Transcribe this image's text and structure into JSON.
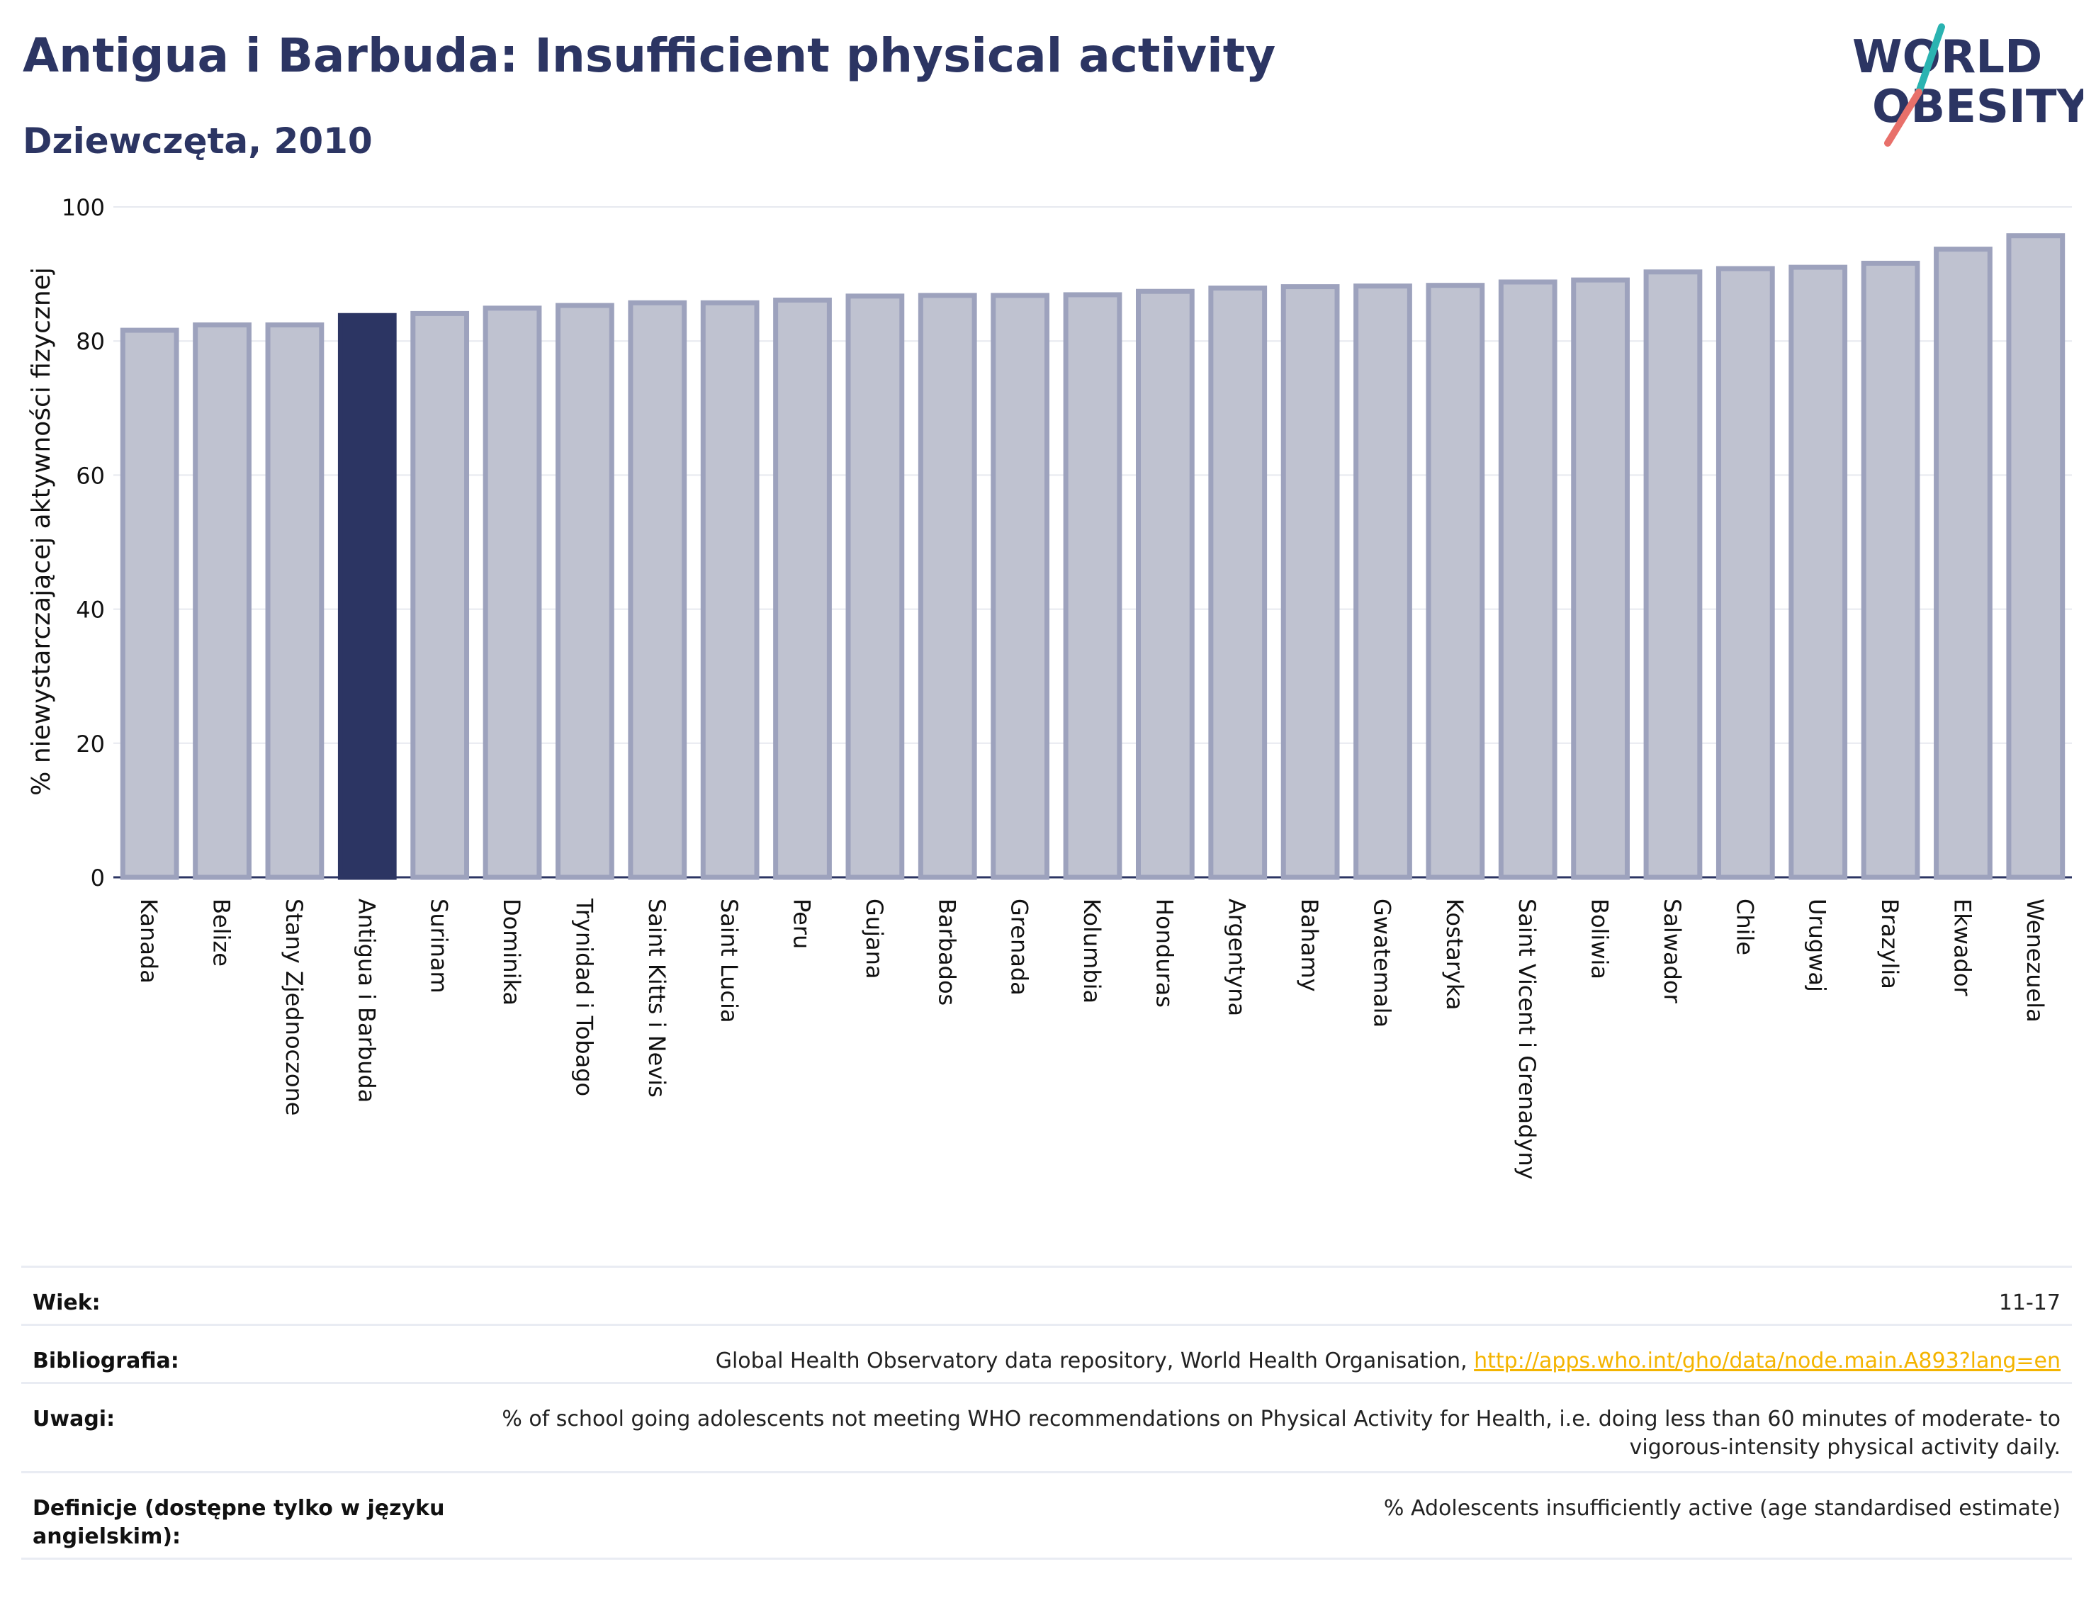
{
  "header": {
    "title": "Antigua i Barbuda: Insufficient physical activity",
    "subtitle": "Dziewczęta, 2010"
  },
  "logo": {
    "line1": "WORLD",
    "line2": "OBESITY",
    "colors": {
      "text": "#2c3563",
      "slash_teal": "#2ab3b1",
      "slash_coral": "#e8706a"
    }
  },
  "colors": {
    "bar_fill": "#bfc2d0",
    "bar_stroke": "#9da2bd",
    "highlight": "#2c3563",
    "grid": "#e7e9ef",
    "axis_text": "#111111"
  },
  "chart_data": {
    "type": "bar",
    "ylabel": "% niewystarczającej aktywności fizycznej",
    "ylim": [
      0,
      100
    ],
    "yticks": [
      0,
      20,
      40,
      60,
      80,
      100
    ],
    "grid": true,
    "highlight": "Antigua i Barbuda",
    "categories": [
      "Kanada",
      "Belize",
      "Stany Zjednoczone",
      "Antigua i Barbuda",
      "Surinam",
      "Dominika",
      "Trynidad i Tobago",
      "Saint Kitts i Nevis",
      "Saint Lucia",
      "Peru",
      "Gujana",
      "Barbados",
      "Grenada",
      "Kolumbia",
      "Honduras",
      "Argentyna",
      "Bahamy",
      "Gwatemala",
      "Kostaryka",
      "Saint Vicent i Grenadyny",
      "Boliwia",
      "Salwador",
      "Chile",
      "Urugwaj",
      "Brazylia",
      "Ekwador",
      "Wenezuela"
    ],
    "values": [
      81.6,
      82.4,
      82.4,
      83.8,
      84.1,
      84.9,
      85.3,
      85.7,
      85.7,
      86.1,
      86.7,
      86.8,
      86.8,
      86.9,
      87.4,
      87.9,
      88.1,
      88.2,
      88.3,
      88.8,
      89.1,
      90.3,
      90.8,
      91.0,
      91.6,
      93.7,
      95.7
    ]
  },
  "info": {
    "rows": [
      {
        "label": "Wiek:",
        "value": "11-17"
      },
      {
        "label": "Bibliografia:",
        "value": "Global Health Observatory data repository, World Health Organisation, ",
        "link": "http://apps.who.int/gho/data/node.main.A893?lang=en"
      },
      {
        "label": "Uwagi:",
        "value": "% of school going adolescents not meeting WHO recommendations on Physical Activity for Health, i.e. doing less than 60 minutes of moderate- to vigorous-intensity physical activity daily."
      },
      {
        "label": "Definicje (dostępne tylko w języku angielskim):",
        "value": "% Adolescents insufficiently active (age standardised estimate)"
      }
    ]
  }
}
